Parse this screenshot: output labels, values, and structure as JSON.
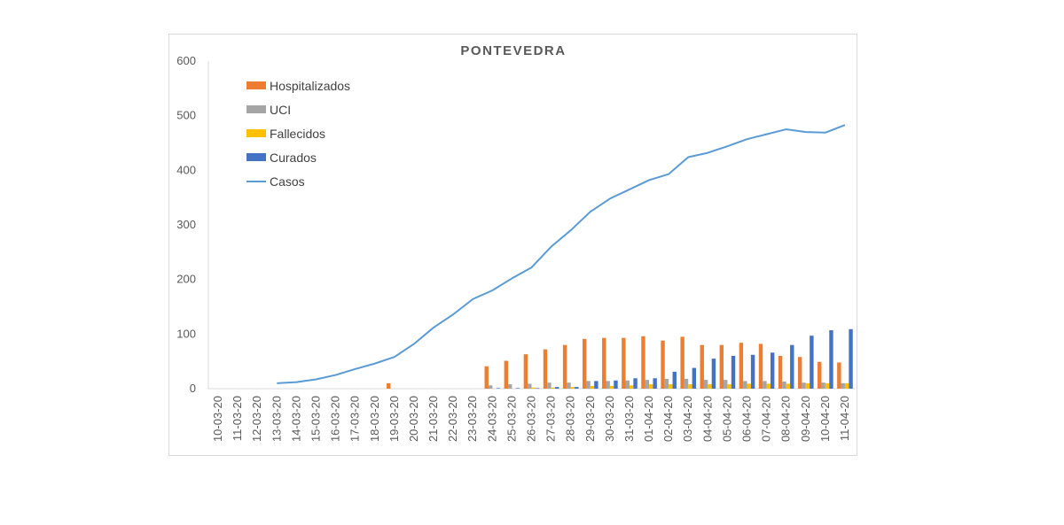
{
  "chart_data": {
    "type": "bar",
    "title": "PONTEVEDRA",
    "xlabel": "",
    "ylabel": "",
    "ylim": [
      0,
      600
    ],
    "yticks": [
      "0",
      "100",
      "200",
      "300",
      "400",
      "500",
      "600"
    ],
    "grid": false,
    "legend_position": "top-left",
    "categories": [
      "10-03-20",
      "11-03-20",
      "12-03-20",
      "13-03-20",
      "14-03-20",
      "15-03-20",
      "16-03-20",
      "17-03-20",
      "18-03-20",
      "19-03-20",
      "20-03-20",
      "21-03-20",
      "22-03-20",
      "23-03-20",
      "24-03-20",
      "25-03-20",
      "26-03-20",
      "27-03-20",
      "28-03-20",
      "29-03-20",
      "30-03-20",
      "31-03-20",
      "01-04-20",
      "02-04-20",
      "03-04-20",
      "04-04-20",
      "05-04-20",
      "06-04-20",
      "07-04-20",
      "08-04-20",
      "09-04-20",
      "10-04-20",
      "11-04-20"
    ],
    "series": [
      {
        "name": "Hospitalizados",
        "kind": "bar",
        "color": "#ED7D31",
        "values": [
          0,
          0,
          0,
          0,
          0,
          0,
          0,
          0,
          0,
          10,
          0,
          0,
          0,
          0,
          41,
          51,
          63,
          72,
          80,
          91,
          93,
          93,
          96,
          88,
          95,
          80,
          80,
          84,
          82,
          60,
          58,
          49,
          48
        ]
      },
      {
        "name": "UCI",
        "kind": "bar",
        "color": "#A5A5A5",
        "values": [
          0,
          0,
          0,
          0,
          0,
          0,
          0,
          0,
          0,
          0,
          0,
          0,
          0,
          0,
          6,
          8,
          9,
          11,
          11,
          14,
          14,
          15,
          16,
          18,
          18,
          16,
          16,
          14,
          14,
          13,
          11,
          11,
          10
        ]
      },
      {
        "name": "Fallecidos",
        "kind": "bar",
        "color": "#FFC000",
        "values": [
          0,
          0,
          0,
          0,
          0,
          0,
          0,
          0,
          0,
          0,
          0,
          0,
          0,
          0,
          0,
          0,
          2,
          2,
          3,
          5,
          5,
          6,
          8,
          8,
          8,
          8,
          8,
          9,
          9,
          9,
          10,
          10,
          10
        ]
      },
      {
        "name": "Curados",
        "kind": "bar",
        "color": "#4472C4",
        "values": [
          0,
          0,
          0,
          0,
          0,
          0,
          0,
          0,
          0,
          0,
          0,
          0,
          0,
          0,
          1,
          1,
          1,
          3,
          3,
          14,
          15,
          19,
          19,
          31,
          38,
          55,
          60,
          62,
          66,
          80,
          97,
          107,
          109
        ]
      },
      {
        "name": "Casos",
        "kind": "line",
        "color": "#5B9BD5",
        "values": [
          null,
          null,
          null,
          10,
          12,
          17,
          25,
          36,
          46,
          58,
          82,
          112,
          136,
          164,
          180,
          202,
          222,
          260,
          290,
          324,
          348,
          365,
          382,
          393,
          424,
          432,
          444,
          457,
          466,
          475,
          470,
          469,
          483
        ]
      }
    ]
  }
}
